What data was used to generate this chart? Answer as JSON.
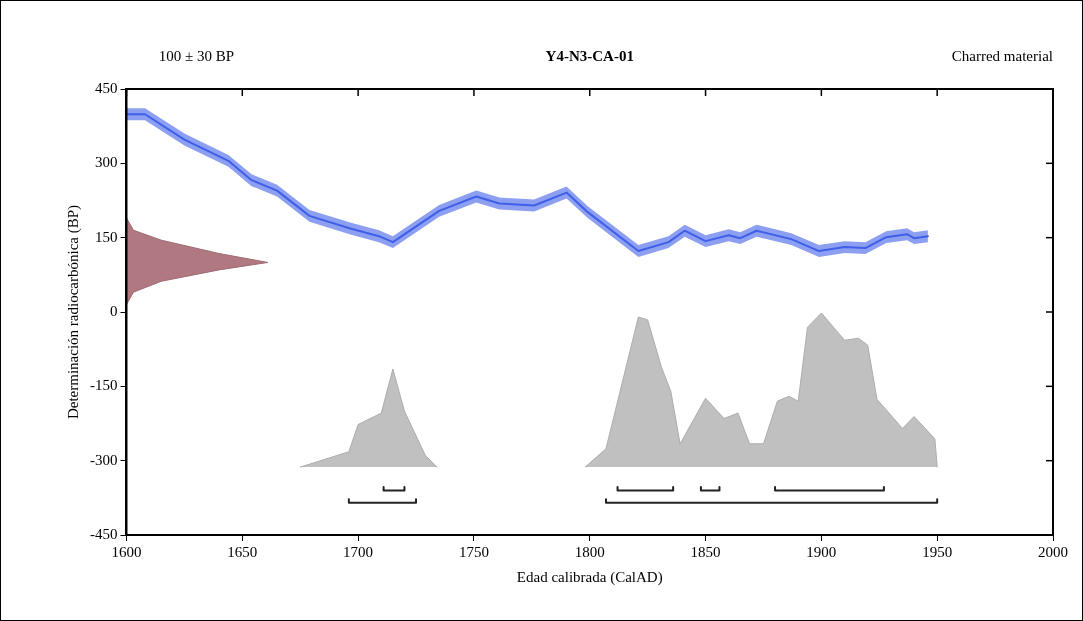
{
  "chart_data": {
    "type": "line",
    "title": "Y4-N3-CA-01",
    "xlabel": "Edad calibrada (CalAD)",
    "ylabel": "Determinación radiocarbónica (BP)",
    "annotations": [
      "100 ± 30 BP",
      "Charred material"
    ],
    "xlim": [
      1600,
      2000
    ],
    "xticks": [
      1600,
      1650,
      1700,
      1750,
      1800,
      1850,
      1900,
      1950,
      2000
    ],
    "ylim": [
      -450,
      450
    ],
    "yticks": [
      450,
      300,
      150,
      0,
      -150,
      -300,
      -450
    ],
    "grid": false,
    "legend": false,
    "marker": "none",
    "line_style": "solid",
    "series": [
      {
        "color": "#3f5fe8",
        "x": [
          1600,
          1608,
          1625,
          1644,
          1654,
          1665,
          1679,
          1697,
          1709,
          1715,
          1735,
          1751,
          1761,
          1776,
          1790,
          1799,
          1821,
          1834,
          1841,
          1850,
          1860,
          1865,
          1872,
          1887,
          1899,
          1910,
          1919,
          1928,
          1937,
          1940,
          1946
        ],
        "values": [
          399,
          399,
          348,
          305,
          266,
          245,
          194,
          168,
          153,
          141,
          204,
          233,
          219,
          215,
          241,
          202,
          123,
          141,
          164,
          143,
          155,
          149,
          164,
          147,
          123,
          131,
          129,
          151,
          157,
          149,
          153
        ],
        "lower": [
          387,
          387,
          336,
          293,
          254,
          233,
          182,
          156,
          141,
          129,
          192,
          221,
          207,
          203,
          229,
          190,
          111,
          129,
          152,
          131,
          143,
          137,
          152,
          135,
          111,
          119,
          117,
          139,
          145,
          137,
          141
        ],
        "upper": [
          411,
          411,
          360,
          317,
          278,
          257,
          206,
          180,
          165,
          153,
          216,
          245,
          231,
          227,
          253,
          214,
          135,
          153,
          176,
          155,
          167,
          161,
          176,
          159,
          135,
          143,
          141,
          163,
          169,
          161,
          165
        ]
      },
      {
        "type": "area",
        "color": "#b07880",
        "x": [
          1600,
          1603,
          1615,
          1640,
          1661,
          1640,
          1615,
          1603,
          1600
        ],
        "values": [
          190,
          165,
          145,
          118,
          100,
          85,
          62,
          40,
          15
        ]
      },
      {
        "type": "area",
        "color": "#c0c0c0",
        "x": [
          1675,
          1696,
          1700,
          1710,
          1715,
          1720,
          1729,
          1734
        ],
        "values": [
          -313,
          -282,
          -227,
          -204,
          -115,
          -200,
          -289,
          -313
        ]
      },
      {
        "type": "area",
        "color": "#c0c0c0",
        "x": [
          1798,
          1807,
          1821,
          1825,
          1831,
          1835,
          1839,
          1850,
          1858,
          1864,
          1869,
          1875,
          1881,
          1886,
          1890,
          1894,
          1900,
          1910,
          1916,
          1920,
          1924,
          1935,
          1940,
          1949,
          1950
        ],
        "values": [
          -313,
          -276,
          -10,
          -16,
          -112,
          -160,
          -266,
          -174,
          -215,
          -204,
          -266,
          -266,
          -180,
          -170,
          -180,
          -31,
          -2,
          -57,
          -53,
          -67,
          -176,
          -235,
          -211,
          -256,
          -313
        ]
      },
      {
        "color": "#222222",
        "x": [
          1711,
          1711,
          1720,
          1720
        ],
        "values": [
          -353,
          -360,
          -360,
          -353
        ]
      },
      {
        "color": "#222222",
        "x": [
          1812,
          1812,
          1836,
          1836
        ],
        "values": [
          -353,
          -360,
          -360,
          -353
        ]
      },
      {
        "color": "#222222",
        "x": [
          1848,
          1848,
          1856,
          1856
        ],
        "values": [
          -353,
          -360,
          -360,
          -353
        ]
      },
      {
        "color": "#222222",
        "x": [
          1880,
          1880,
          1927,
          1927
        ],
        "values": [
          -353,
          -360,
          -360,
          -353
        ]
      },
      {
        "color": "#222222",
        "x": [
          1696,
          1696,
          1725,
          1725
        ],
        "values": [
          -378,
          -385,
          -385,
          -378
        ]
      },
      {
        "color": "#222222",
        "x": [
          1807,
          1807,
          1950,
          1950
        ],
        "values": [
          -378,
          -385,
          -385,
          -378
        ]
      }
    ]
  }
}
